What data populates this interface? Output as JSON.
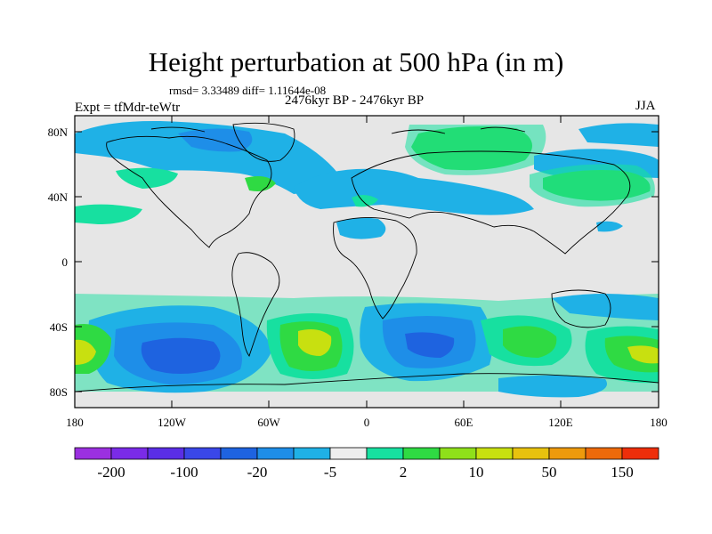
{
  "title": "Height perturbation at 500 hPa (in m)",
  "stats": "rmsd= 3.33489 diff= 1.11644e-08",
  "expt": "Expt = tfMdr-teWtr",
  "period": "2476kyr BP - 2476kyr BP",
  "season": "JJA",
  "lat_labels": [
    "80N",
    "40N",
    "0",
    "40S",
    "80S"
  ],
  "lon_labels": [
    "180",
    "120W",
    "60W",
    "0",
    "60E",
    "120E",
    "180"
  ],
  "colorbar": {
    "colors": [
      "#9b30e0",
      "#7a2be8",
      "#5a2ee6",
      "#3a47e8",
      "#1e63e0",
      "#1e8ee8",
      "#1fb1e6",
      "#eeeeee",
      "#17e0a0",
      "#2fda43",
      "#8fe01a",
      "#c8e010",
      "#e8c20e",
      "#ee9a0c",
      "#ee6a0a",
      "#ee2e0a"
    ],
    "labels": [
      "-200",
      "-100",
      "-20",
      "-5",
      "2",
      "10",
      "50",
      "150"
    ]
  },
  "colors": {
    "land": "#e6e6e6",
    "light_blue": "#1fb1e6",
    "mid_blue": "#1e8ee8",
    "dark_blue": "#1e63e0",
    "teal": "#17e0a0",
    "green": "#2fda43",
    "yellow_green": "#c8e010"
  }
}
